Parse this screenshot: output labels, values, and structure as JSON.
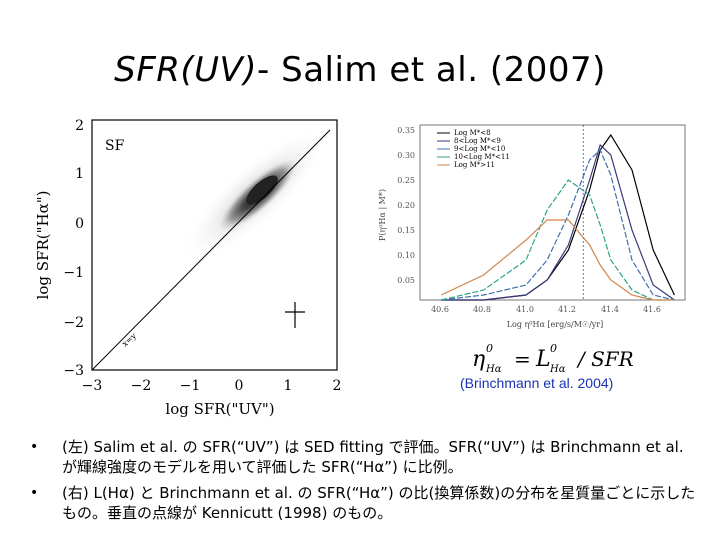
{
  "title": {
    "part1": "SFR(UV)",
    "part2": "- Salim et al. (2007)"
  },
  "left_plot": {
    "panel_label": "SF",
    "xlabel": "log  SFR(\"UV\")",
    "ylabel": "log  SFR(\"Hα\")",
    "x_ticks": [
      "−3",
      "−2",
      "−1",
      "0",
      "1",
      "2"
    ],
    "y_ticks": [
      "2",
      "1",
      "0",
      "−1",
      "−2",
      "−3"
    ],
    "line_label": "x=y"
  },
  "right_plot": {
    "y_ticks": [
      "0.35",
      "0.30",
      "0.25",
      "0.20",
      "0.15",
      "0.10",
      "0.05"
    ],
    "x_ticks": [
      "40.6",
      "40.8",
      "41.0",
      "41.2",
      "41.4",
      "41.6"
    ],
    "xlabel": "Log η⁰Hα  [erg/s/M☉/yr]",
    "ylabel": "P(η⁰Hα | M*)",
    "legend": [
      "Log M*<8",
      "8<Log M*<9",
      "9<Log M*<10",
      "10<Log M*<11",
      "Log M*>11"
    ]
  },
  "formula": {
    "lhs": "η",
    "lhs_sub": "Hα",
    "lhs_sup": "0",
    "eq": "=",
    "num": "L",
    "num_sub": "Hα",
    "num_sup": "0",
    "den": "/ SFR"
  },
  "caption": "(Brinchmann et al. 2004)",
  "bullets": [
    "(左) Salim et al. の SFR(“UV”) は SED fitting で評価。SFR(“UV”) は Brinchmann et al. が輝線強度のモデルを用いて評価した SFR(“Hα”) に比例。",
    "(右) L(Hα) と Brinchmann et al. の SFR(“Hα”) の比(換算係数)の分布を星質量ごとに示したもの。垂直の点線が Kennicutt (1998) のもの。"
  ],
  "colors": {
    "series": [
      "#000000",
      "#3a3a7a",
      "#3f6fb0",
      "#2ea28a",
      "#d0854a"
    ],
    "caption": "#1a32b4"
  },
  "chart_data": [
    {
      "type": "heatmap",
      "title": "",
      "xlabel": "log  SFR(\"UV\")",
      "ylabel": "log  SFR(\"Hα\")",
      "xlim": [
        -3,
        2
      ],
      "ylim": [
        -3,
        2
      ],
      "annotations": [
        "SF",
        "x=y"
      ]
    },
    {
      "type": "line",
      "title": "",
      "xlabel": "Log η⁰Hα  [erg/s/M☉/yr]",
      "ylabel": "P(η⁰Hα | M*)",
      "xlim": [
        40.5,
        41.75
      ],
      "ylim": [
        0,
        0.35
      ],
      "reference_line_x": 41.27,
      "x": [
        40.6,
        40.8,
        41.0,
        41.1,
        41.2,
        41.3,
        41.35,
        41.4,
        41.5,
        41.6,
        41.7
      ],
      "series": [
        {
          "name": "Log M*<8",
          "values": [
            0.0,
            0.0,
            0.01,
            0.04,
            0.1,
            0.22,
            0.3,
            0.33,
            0.26,
            0.1,
            0.01
          ]
        },
        {
          "name": "8<Log M*<9",
          "values": [
            0.0,
            0.0,
            0.01,
            0.04,
            0.11,
            0.24,
            0.31,
            0.29,
            0.14,
            0.03,
            0.0
          ]
        },
        {
          "name": "9<Log M*<10",
          "values": [
            0.0,
            0.01,
            0.03,
            0.08,
            0.17,
            0.28,
            0.3,
            0.25,
            0.08,
            0.01,
            0.0
          ]
        },
        {
          "name": "10<Log M*<11",
          "values": [
            0.0,
            0.02,
            0.08,
            0.18,
            0.24,
            0.21,
            0.15,
            0.08,
            0.02,
            0.0,
            0.0
          ]
        },
        {
          "name": "Log M*>11",
          "values": [
            0.01,
            0.05,
            0.12,
            0.16,
            0.16,
            0.11,
            0.07,
            0.04,
            0.01,
            0.0,
            0.0
          ]
        }
      ]
    }
  ]
}
